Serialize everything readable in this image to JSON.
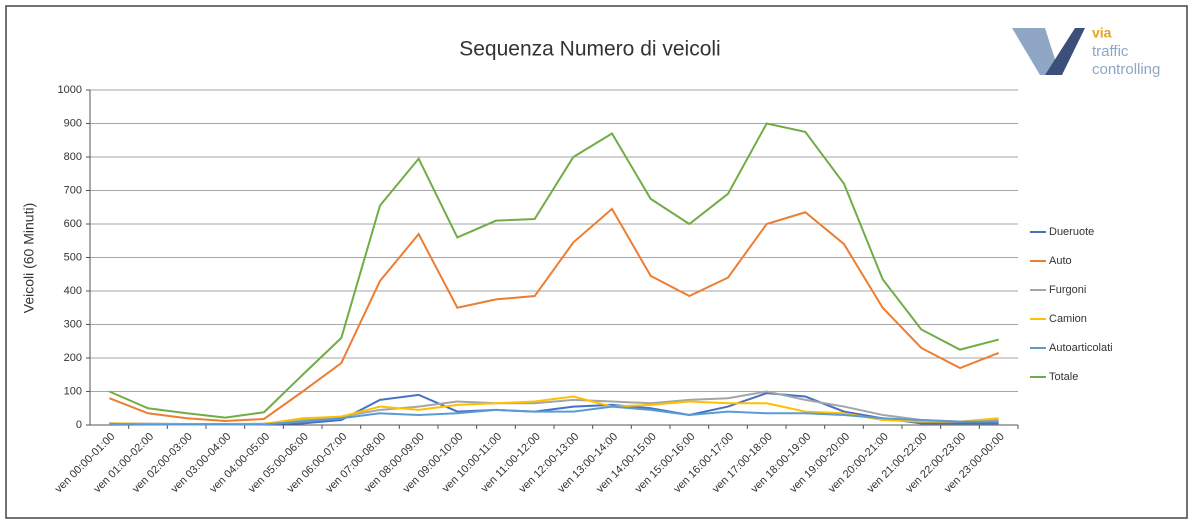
{
  "chart_data": {
    "type": "line",
    "title": "Sequenza Numero di veicoli",
    "y_label": "Veicoli (60 Minuti)",
    "categories": [
      "ven 00:00-01:00",
      "ven 01:00-02:00",
      "ven 02:00-03:00",
      "ven 03:00-04:00",
      "ven 04:00-05:00",
      "ven 05:00-06:00",
      "ven 06:00-07:00",
      "ven 07:00-08:00",
      "ven 08:00-09:00",
      "ven 09:00-10:00",
      "ven 10:00-11:00",
      "ven 11:00-12:00",
      "ven 12:00-13:00",
      "ven 13:00-14:00",
      "ven 14:00-15:00",
      "ven 15:00-16:00",
      "ven 16:00-17:00",
      "ven 17:00-18:00",
      "ven 18:00-19:00",
      "ven 19:00-20:00",
      "ven 20:00-21:00",
      "ven 21:00-22:00",
      "ven 22:00-23:00",
      "ven 23:00-00:00"
    ],
    "series": [
      {
        "name": "Dueruote",
        "color": "#4472c4",
        "values": [
          5,
          3,
          2,
          2,
          3,
          5,
          15,
          75,
          90,
          40,
          45,
          40,
          55,
          60,
          50,
          30,
          55,
          95,
          85,
          40,
          20,
          5,
          5,
          5
        ]
      },
      {
        "name": "Auto",
        "color": "#ed7d31",
        "values": [
          80,
          35,
          20,
          12,
          18,
          100,
          185,
          430,
          570,
          350,
          375,
          385,
          545,
          645,
          445,
          385,
          440,
          600,
          635,
          540,
          350,
          230,
          170,
          215
        ]
      },
      {
        "name": "Furgoni",
        "color": "#a5a5a5",
        "values": [
          5,
          4,
          3,
          3,
          4,
          15,
          25,
          45,
          55,
          70,
          65,
          65,
          75,
          70,
          65,
          75,
          80,
          100,
          75,
          55,
          30,
          15,
          10,
          15
        ]
      },
      {
        "name": "Camion",
        "color": "#ffc000",
        "values": [
          5,
          3,
          2,
          2,
          3,
          20,
          25,
          55,
          45,
          60,
          65,
          70,
          85,
          55,
          60,
          70,
          65,
          65,
          40,
          35,
          15,
          10,
          10,
          20
        ]
      },
      {
        "name": "Autoarticolati",
        "color": "#5b9bd5",
        "values": [
          3,
          2,
          2,
          2,
          2,
          10,
          20,
          35,
          30,
          35,
          45,
          40,
          40,
          55,
          45,
          30,
          40,
          35,
          35,
          30,
          20,
          15,
          10,
          10
        ]
      },
      {
        "name": "Totale",
        "color": "#70ad47",
        "values": [
          100,
          50,
          35,
          22,
          38,
          150,
          260,
          655,
          795,
          560,
          610,
          615,
          800,
          870,
          675,
          600,
          690,
          900,
          875,
          720,
          435,
          285,
          225,
          255
        ]
      }
    ],
    "ylim": [
      0,
      1000
    ],
    "yticks": [
      0,
      100,
      200,
      300,
      400,
      500,
      600,
      700,
      800,
      900,
      1000
    ],
    "grid": true,
    "legend": "right"
  },
  "logo": {
    "text": [
      "via",
      "traffic",
      "controlling"
    ]
  }
}
